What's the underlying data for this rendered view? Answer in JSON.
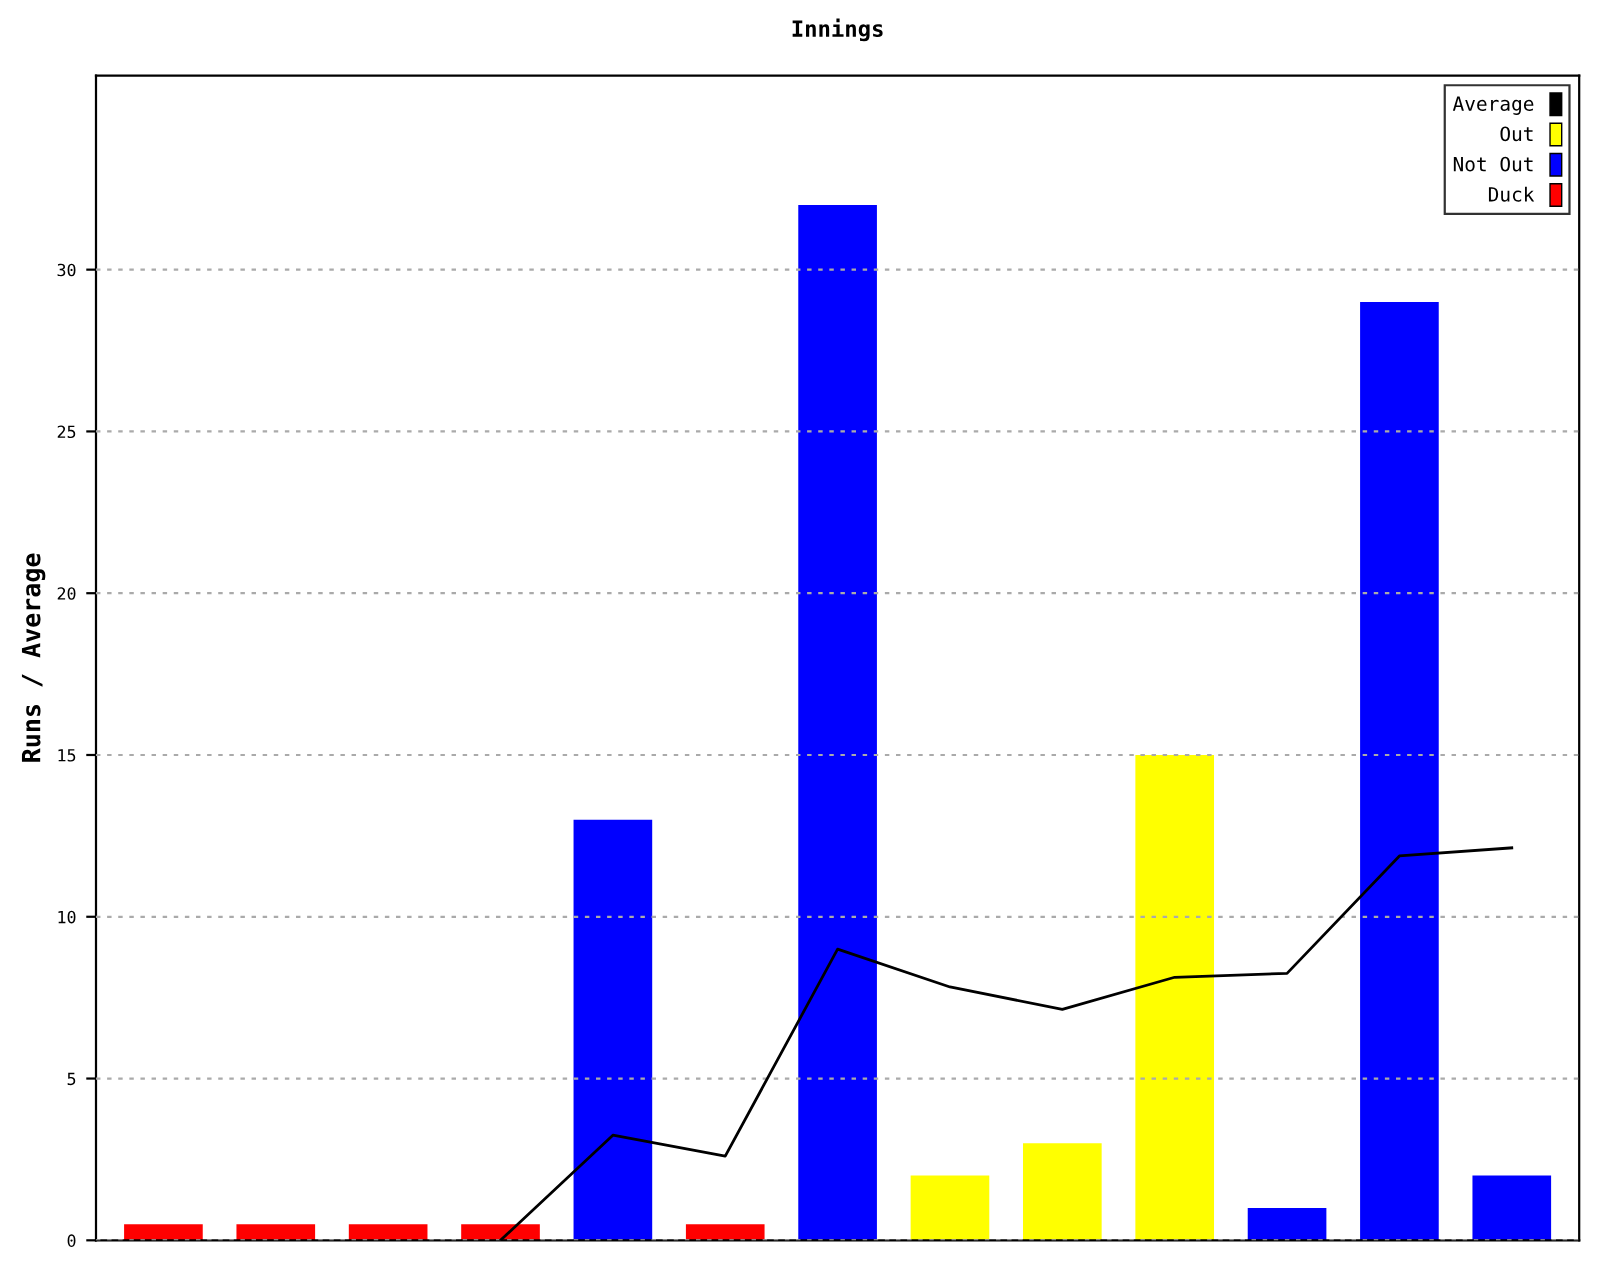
{
  "chart_data": {
    "type": "bar",
    "title": "Innings",
    "ylabel": "Runs / Average",
    "categories": [
      null,
      null,
      null,
      null,
      null,
      null,
      null,
      null,
      null,
      null,
      null,
      null,
      null
    ],
    "series": [
      {
        "name": "Average",
        "type": "line",
        "color": "#000000",
        "values": [
          null,
          null,
          null,
          0,
          3.25,
          2.6,
          9,
          7.83,
          7.14,
          8.13,
          8.25,
          11.88,
          12.13
        ]
      },
      {
        "name": "Out",
        "color": "#ffff00",
        "values": [
          null,
          null,
          null,
          null,
          null,
          null,
          null,
          2,
          3,
          15,
          null,
          null,
          null
        ]
      },
      {
        "name": "Not Out",
        "color": "#0000ff",
        "values": [
          null,
          null,
          null,
          null,
          13,
          null,
          32,
          null,
          null,
          null,
          1,
          29,
          2
        ]
      },
      {
        "name": "Duck",
        "color": "#ff0000",
        "values": [
          0.5,
          0.5,
          0.5,
          0.5,
          null,
          0.5,
          null,
          null,
          null,
          null,
          null,
          null,
          null
        ]
      }
    ],
    "ylim": [
      0,
      36
    ],
    "yticks": [
      0,
      5,
      10,
      15,
      20,
      25,
      30
    ],
    "grid": "y",
    "legend": "top right",
    "marker": "none",
    "line_style": "solid"
  }
}
